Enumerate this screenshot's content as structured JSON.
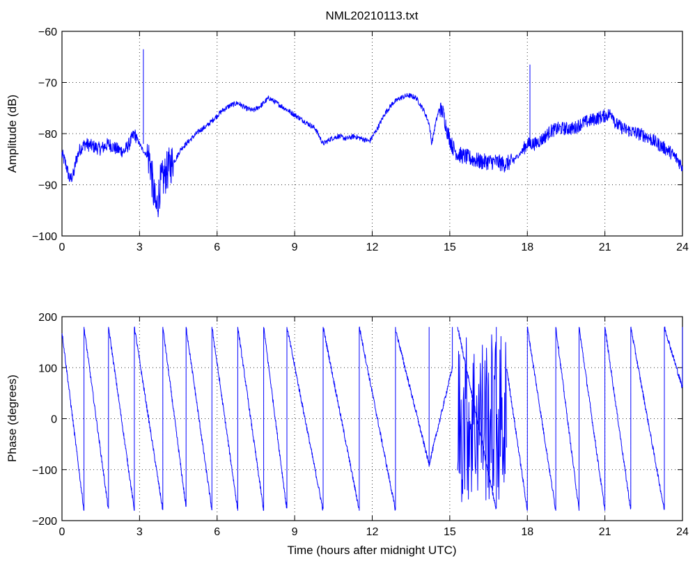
{
  "chart_data": [
    {
      "type": "line",
      "title": "NML20210113.txt",
      "xlabel": "",
      "ylabel": "Amplitude (dB)",
      "xlim": [
        0,
        24
      ],
      "ylim": [
        -100,
        -60
      ],
      "xticks": [
        "0",
        "3",
        "6",
        "9",
        "12",
        "15",
        "18",
        "21",
        "24"
      ],
      "yticks": [
        "−60",
        "−70",
        "−80",
        "−90",
        "−100"
      ],
      "grid": true,
      "series": [
        {
          "color": "#0000ff",
          "x": [
            0,
            0.15,
            0.3,
            0.45,
            0.55,
            0.7,
            0.9,
            1.2,
            1.5,
            1.8,
            2.1,
            2.4,
            2.6,
            2.8,
            3.0,
            3.1,
            3.25,
            3.4,
            3.55,
            3.65,
            3.8,
            4.0,
            4.2,
            4.4,
            4.6,
            4.8,
            5.0,
            5.3,
            5.6,
            5.9,
            6.2,
            6.5,
            6.8,
            7.1,
            7.4,
            7.7,
            8.0,
            8.3,
            8.6,
            8.9,
            9.2,
            9.5,
            9.8,
            10.1,
            10.4,
            10.7,
            11.0,
            11.3,
            11.6,
            11.9,
            12.2,
            12.5,
            12.8,
            13.1,
            13.4,
            13.7,
            14.0,
            14.2,
            14.3,
            14.45,
            14.6,
            14.75,
            14.9,
            15.1,
            15.3,
            15.6,
            15.9,
            16.2,
            16.5,
            16.8,
            17.1,
            17.4,
            17.7,
            18.0,
            18.3,
            18.6,
            18.9,
            19.2,
            19.5,
            19.8,
            20.1,
            20.4,
            20.7,
            21.0,
            21.3,
            21.4,
            21.7,
            22.0,
            22.3,
            22.6,
            22.9,
            23.2,
            23.5,
            23.8,
            24.0
          ],
          "values": [
            -84,
            -86,
            -89,
            -88,
            -85,
            -83,
            -82,
            -82.5,
            -83,
            -82,
            -83,
            -83.5,
            -82,
            -80,
            -82,
            -83,
            -84,
            -85,
            -92,
            -95,
            -90,
            -88,
            -86,
            -85,
            -83,
            -82,
            -81,
            -79.5,
            -78.5,
            -77,
            -75.5,
            -74.5,
            -74,
            -75,
            -75.5,
            -74.5,
            -73,
            -74,
            -75,
            -76,
            -77,
            -78,
            -79,
            -82,
            -81,
            -80.5,
            -81,
            -80.5,
            -81,
            -81.5,
            -79,
            -76,
            -74,
            -73,
            -72.5,
            -73,
            -75.5,
            -78,
            -82,
            -78,
            -75,
            -76,
            -79.5,
            -82.5,
            -84,
            -84.5,
            -85,
            -85.5,
            -85.5,
            -85.5,
            -86,
            -85.5,
            -84,
            -82,
            -82,
            -81,
            -79.5,
            -79,
            -79,
            -79,
            -78,
            -77.5,
            -77,
            -76.5,
            -76,
            -78,
            -79,
            -79.5,
            -80,
            -80.5,
            -81.5,
            -82.5,
            -83.5,
            -85,
            -86.5
          ]
        }
      ],
      "annotations": [
        {
          "x": 3.15,
          "y": -63.5,
          "kind": "spike"
        },
        {
          "x": 18.1,
          "y": -66.5,
          "kind": "spike"
        }
      ]
    },
    {
      "type": "line",
      "title": "",
      "xlabel": "Time (hours after midnight UTC)",
      "ylabel": "Phase (degrees)",
      "xlim": [
        0,
        24
      ],
      "ylim": [
        -200,
        200
      ],
      "xticks": [
        "0",
        "3",
        "6",
        "9",
        "12",
        "15",
        "18",
        "21",
        "24"
      ],
      "yticks": [
        "200",
        "100",
        "0",
        "−100",
        "−200"
      ],
      "grid": true,
      "series": [
        {
          "color": "#0000ff",
          "type": "wrapped-phase",
          "segments": [
            {
              "x0": 0.0,
              "x1": 0.85,
              "y0": 170,
              "y1": -180
            },
            {
              "x0": 0.85,
              "x1": 1.8,
              "y0": 180,
              "y1": -180
            },
            {
              "x0": 1.8,
              "x1": 2.8,
              "y0": 180,
              "y1": -180
            },
            {
              "x0": 2.8,
              "x1": 3.9,
              "y0": 180,
              "y1": -180
            },
            {
              "x0": 3.9,
              "x1": 4.8,
              "y0": 180,
              "y1": -175
            },
            {
              "x0": 4.8,
              "x1": 5.8,
              "y0": 180,
              "y1": -180
            },
            {
              "x0": 5.8,
              "x1": 6.8,
              "y0": 180,
              "y1": -180
            },
            {
              "x0": 6.8,
              "x1": 7.8,
              "y0": 180,
              "y1": -180
            },
            {
              "x0": 7.8,
              "x1": 8.7,
              "y0": 180,
              "y1": -180
            },
            {
              "x0": 8.7,
              "x1": 10.1,
              "y0": 180,
              "y1": -180
            },
            {
              "x0": 10.1,
              "x1": 11.5,
              "y0": 180,
              "y1": -180
            },
            {
              "x0": 11.5,
              "x1": 12.9,
              "y0": 180,
              "y1": -180
            },
            {
              "x0": 12.9,
              "x1": 14.2,
              "y0": 175,
              "y1": -90
            },
            {
              "x0": 14.2,
              "x1": 15.1,
              "y0": -90,
              "y1": 100
            },
            {
              "x0": 15.3,
              "x1": 16.8,
              "y0": 180,
              "y1": -180
            },
            {
              "x0": 17.2,
              "x1": 18.0,
              "y0": 100,
              "y1": -180
            },
            {
              "x0": 18.0,
              "x1": 19.1,
              "y0": 180,
              "y1": -180
            },
            {
              "x0": 19.1,
              "x1": 20.0,
              "y0": 180,
              "y1": -180
            },
            {
              "x0": 20.0,
              "x1": 21.0,
              "y0": 180,
              "y1": -180
            },
            {
              "x0": 21.0,
              "x1": 22.0,
              "y0": 180,
              "y1": -180
            },
            {
              "x0": 22.0,
              "x1": 23.3,
              "y0": 180,
              "y1": -180
            },
            {
              "x0": 23.3,
              "x1": 24.0,
              "y0": 180,
              "y1": 60
            }
          ]
        }
      ]
    }
  ]
}
